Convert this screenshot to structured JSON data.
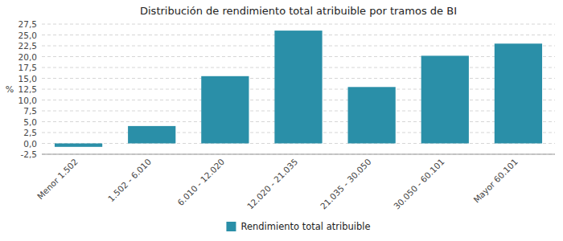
{
  "chart_data": {
    "type": "bar",
    "title": "Distribución de rendimiento total atribuible por tramos de BI",
    "categories": [
      "Menor 1.502",
      "1.502 - 6.010",
      "6.010 - 12.020",
      "12.020 - 21.035",
      "21.035 - 30.050",
      "30.050 - 60.101",
      "Mayor 60.101"
    ],
    "series": [
      {
        "name": "Rendimiento total atribuible",
        "color": "#2a8fa8",
        "values": [
          -0.8,
          4.0,
          15.5,
          26.0,
          13.0,
          20.2,
          23.0
        ]
      }
    ],
    "ylabel": "%",
    "ylim": [
      -2.5,
      27.5
    ],
    "yticks": [
      {
        "value": -2.5,
        "label": "-2,5"
      },
      {
        "value": 0.0,
        "label": "0,0"
      },
      {
        "value": 2.5,
        "label": "2,5"
      },
      {
        "value": 5.0,
        "label": "5,0"
      },
      {
        "value": 7.5,
        "label": "7,5"
      },
      {
        "value": 10.0,
        "label": "10,0"
      },
      {
        "value": 12.5,
        "label": "12,5"
      },
      {
        "value": 15.0,
        "label": "15,0"
      },
      {
        "value": 17.5,
        "label": "17,5"
      },
      {
        "value": 20.0,
        "label": "20,0"
      },
      {
        "value": 22.5,
        "label": "22,5"
      },
      {
        "value": 25.0,
        "label": "25,0"
      },
      {
        "value": 27.5,
        "label": "27,5"
      }
    ],
    "grid": true,
    "legend": "bottom"
  }
}
